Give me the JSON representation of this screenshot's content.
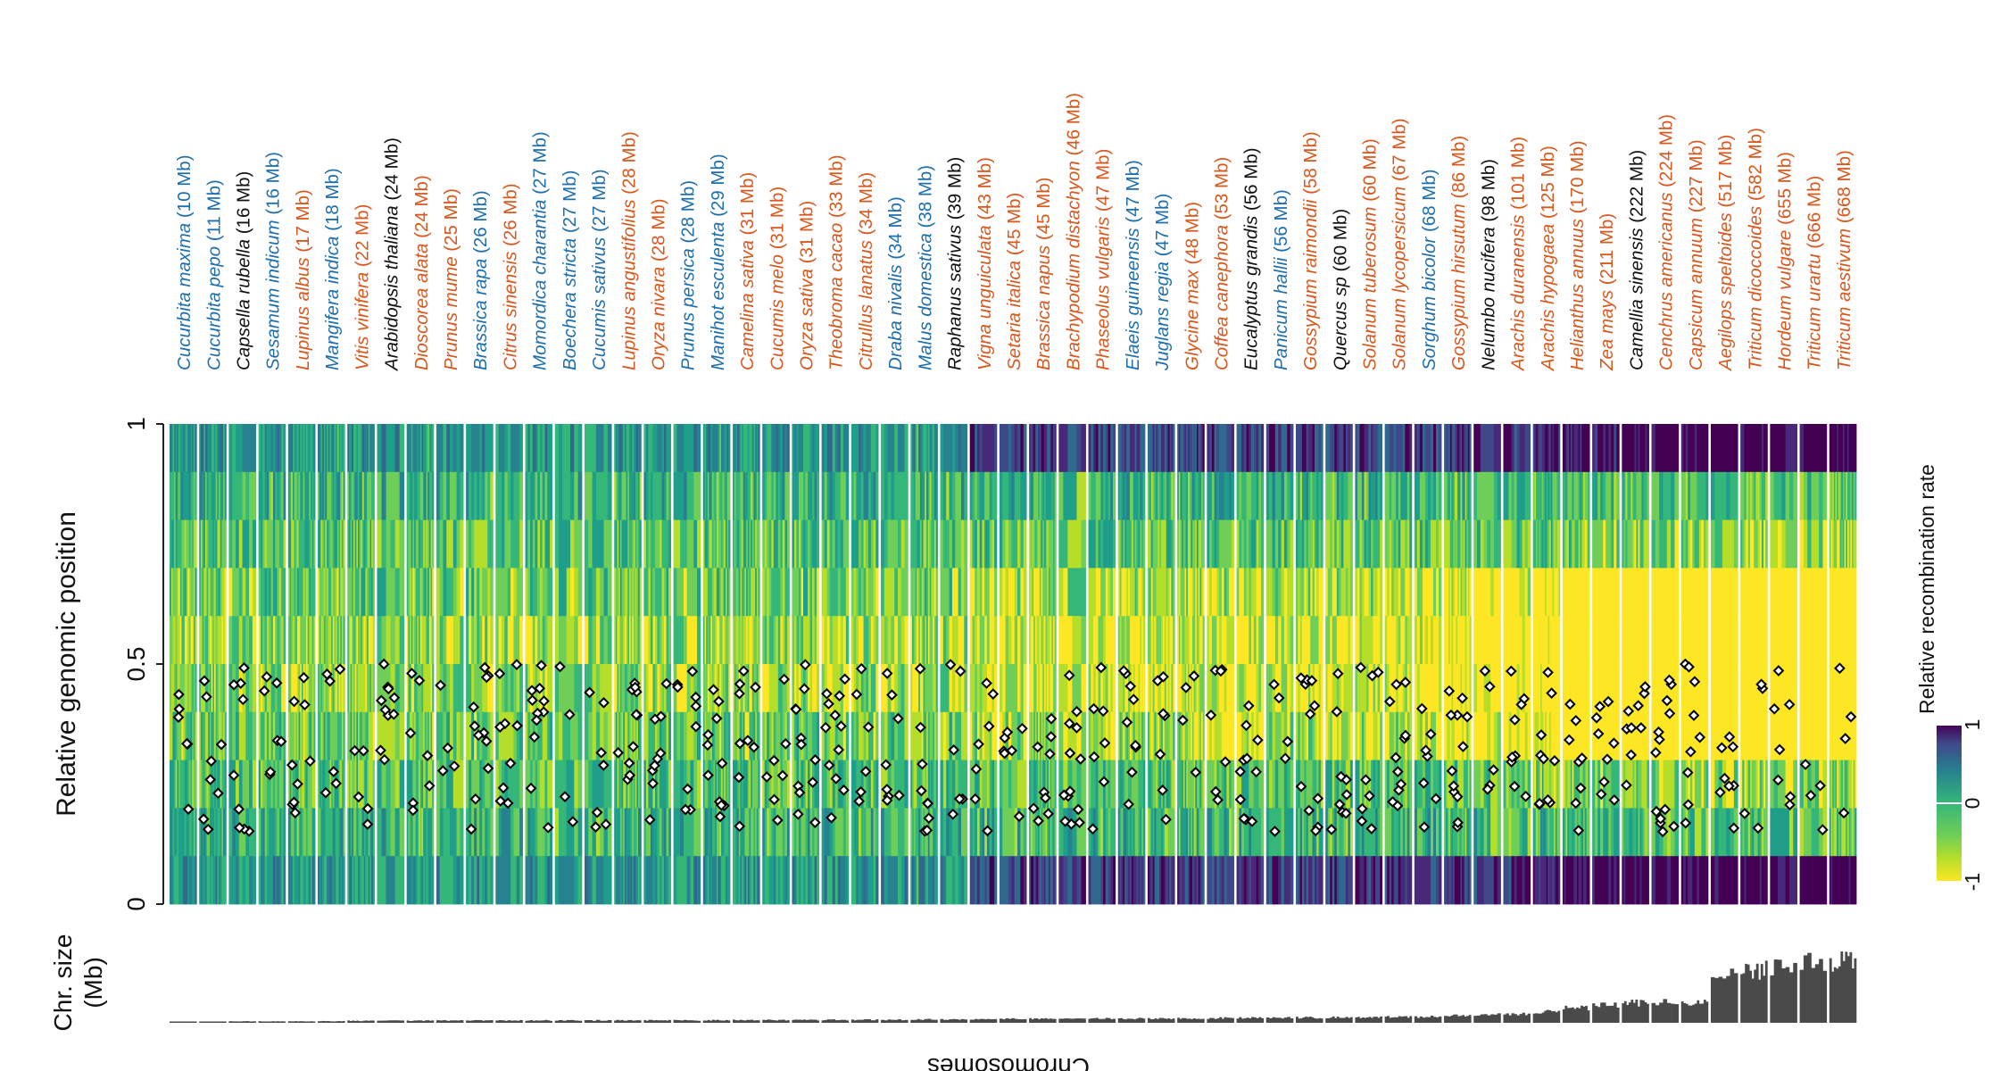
{
  "chart_data": {
    "type": "heatmap",
    "ylabel": "Relative genomic position",
    "xlabel": "Chromosomes",
    "lower_panel_ylabel": [
      "Chr. size",
      "(Mb)"
    ],
    "yticks": [
      "0",
      "0.5",
      "1"
    ],
    "ylim": [
      0,
      1
    ],
    "legend": {
      "title": "Relative recombination rate",
      "ticks": [
        "1",
        "0",
        "-1"
      ],
      "placement": "right"
    },
    "colors": {
      "orange": "#d9581e",
      "blue": "#1f6fae",
      "black": "#111111",
      "bars": "#4a4a4a",
      "viridis": [
        "#fde725",
        "#b5de2b",
        "#6ece58",
        "#35b779",
        "#1f9e89",
        "#26828e",
        "#31688e",
        "#3e4989",
        "#482878",
        "#440154"
      ]
    },
    "species": [
      {
        "genus": "Cucurbita",
        "epithet": "maxima",
        "size": "(10 Mb)",
        "color": "blue",
        "nchr": 20,
        "mb": 10
      },
      {
        "genus": "Cucurbita",
        "epithet": "pepo",
        "size": "(11 Mb)",
        "color": "blue",
        "nchr": 20,
        "mb": 11
      },
      {
        "genus": "Capsella",
        "epithet": "rubella",
        "size": "(16 Mb)",
        "color": "black",
        "nchr": 8,
        "mb": 16
      },
      {
        "genus": "Sesamum",
        "epithet": "indicum",
        "size": "(16 Mb)",
        "color": "blue",
        "nchr": 13,
        "mb": 16
      },
      {
        "genus": "Lupinus",
        "epithet": "albus",
        "size": "(17 Mb)",
        "color": "orange",
        "nchr": 25,
        "mb": 17
      },
      {
        "genus": "Mangifera",
        "epithet": "indica",
        "size": "(18 Mb)",
        "color": "blue",
        "nchr": 20,
        "mb": 18
      },
      {
        "genus": "Vitis",
        "epithet": "vinifera",
        "size": "(22 Mb)",
        "color": "orange",
        "nchr": 19,
        "mb": 22
      },
      {
        "genus": "Arabidopsis",
        "epithet": "thaliana",
        "size": "(24 Mb)",
        "color": "black",
        "nchr": 5,
        "mb": 24
      },
      {
        "genus": "Dioscorea",
        "epithet": "alata",
        "size": "(24 Mb)",
        "color": "orange",
        "nchr": 20,
        "mb": 24
      },
      {
        "genus": "Prunus",
        "epithet": "mume",
        "size": "(25 Mb)",
        "color": "orange",
        "nchr": 8,
        "mb": 25
      },
      {
        "genus": "Brassica",
        "epithet": "rapa",
        "size": "(26 Mb)",
        "color": "blue",
        "nchr": 10,
        "mb": 26
      },
      {
        "genus": "Citrus",
        "epithet": "sinensis",
        "size": "(26 Mb)",
        "color": "orange",
        "nchr": 9,
        "mb": 26
      },
      {
        "genus": "Momordica",
        "epithet": "charantia",
        "size": "(27 Mb)",
        "color": "blue",
        "nchr": 11,
        "mb": 27
      },
      {
        "genus": "Boechera",
        "epithet": "stricta",
        "size": "(27 Mb)",
        "color": "blue",
        "nchr": 7,
        "mb": 27
      },
      {
        "genus": "Cucumis",
        "epithet": "sativus",
        "size": "(27 Mb)",
        "color": "blue",
        "nchr": 7,
        "mb": 27
      },
      {
        "genus": "Lupinus",
        "epithet": "angustifolius",
        "size": "(28 Mb)",
        "color": "orange",
        "nchr": 20,
        "mb": 28
      },
      {
        "genus": "Oryza",
        "epithet": "nivara",
        "size": "(28 Mb)",
        "color": "orange",
        "nchr": 12,
        "mb": 28
      },
      {
        "genus": "Prunus",
        "epithet": "persica",
        "size": "(28 Mb)",
        "color": "blue",
        "nchr": 8,
        "mb": 28
      },
      {
        "genus": "Manihot",
        "epithet": "esculenta",
        "size": "(29 Mb)",
        "color": "blue",
        "nchr": 18,
        "mb": 29
      },
      {
        "genus": "Camelina",
        "epithet": "sativa",
        "size": "(31 Mb)",
        "color": "orange",
        "nchr": 20,
        "mb": 31
      },
      {
        "genus": "Cucumis",
        "epithet": "melo",
        "size": "(31 Mb)",
        "color": "orange",
        "nchr": 12,
        "mb": 31
      },
      {
        "genus": "Oryza",
        "epithet": "sativa",
        "size": "(31 Mb)",
        "color": "orange",
        "nchr": 12,
        "mb": 31
      },
      {
        "genus": "Theobroma",
        "epithet": "cacao",
        "size": "(33 Mb)",
        "color": "orange",
        "nchr": 10,
        "mb": 33
      },
      {
        "genus": "Citrullus",
        "epithet": "lanatus",
        "size": "(34 Mb)",
        "color": "orange",
        "nchr": 11,
        "mb": 34
      },
      {
        "genus": "Draba",
        "epithet": "nivalis",
        "size": "(34 Mb)",
        "color": "blue",
        "nchr": 8,
        "mb": 34
      },
      {
        "genus": "Malus",
        "epithet": "domestica",
        "size": "(38 Mb)",
        "color": "blue",
        "nchr": 17,
        "mb": 38
      },
      {
        "genus": "Raphanus",
        "epithet": "sativus",
        "size": "(39 Mb)",
        "color": "black",
        "nchr": 9,
        "mb": 39
      },
      {
        "genus": "Vigna",
        "epithet": "unguiculata",
        "size": "(43 Mb)",
        "color": "orange",
        "nchr": 11,
        "mb": 43
      },
      {
        "genus": "Setaria",
        "epithet": "italica",
        "size": "(45 Mb)",
        "color": "orange",
        "nchr": 9,
        "mb": 45
      },
      {
        "genus": "Brassica",
        "epithet": "napus",
        "size": "(45 Mb)",
        "color": "orange",
        "nchr": 19,
        "mb": 45
      },
      {
        "genus": "Brachypodium",
        "epithet": "distachyon",
        "size": "(46 Mb)",
        "color": "orange",
        "nchr": 5,
        "mb": 46
      },
      {
        "genus": "Phaseolus",
        "epithet": "vulgaris",
        "size": "(47 Mb)",
        "color": "orange",
        "nchr": 11,
        "mb": 47
      },
      {
        "genus": "Elaeis",
        "epithet": "guineensis",
        "size": "(47 Mb)",
        "color": "blue",
        "nchr": 16,
        "mb": 47
      },
      {
        "genus": "Juglans",
        "epithet": "regia",
        "size": "(47 Mb)",
        "color": "blue",
        "nchr": 16,
        "mb": 47
      },
      {
        "genus": "Glycine",
        "epithet": "max",
        "size": "(48 Mb)",
        "color": "orange",
        "nchr": 20,
        "mb": 48
      },
      {
        "genus": "Coffea",
        "epithet": "canephora",
        "size": "(53 Mb)",
        "color": "orange",
        "nchr": 11,
        "mb": 53
      },
      {
        "genus": "Eucalyptus",
        "epithet": "grandis",
        "size": "(56 Mb)",
        "color": "black",
        "nchr": 11,
        "mb": 56
      },
      {
        "genus": "Panicum",
        "epithet": "hallii",
        "size": "(56 Mb)",
        "color": "blue",
        "nchr": 9,
        "mb": 56
      },
      {
        "genus": "Gossypium",
        "epithet": "raimondii",
        "size": "(58 Mb)",
        "color": "orange",
        "nchr": 13,
        "mb": 58
      },
      {
        "genus": "Quercus",
        "epithet": "sp",
        "size": "(60 Mb)",
        "color": "black",
        "nchr": 12,
        "mb": 60
      },
      {
        "genus": "Solanum",
        "epithet": "tuberosum",
        "size": "(60 Mb)",
        "color": "orange",
        "nchr": 12,
        "mb": 60
      },
      {
        "genus": "Solanum",
        "epithet": "lycopersicum",
        "size": "(67 Mb)",
        "color": "orange",
        "nchr": 12,
        "mb": 67
      },
      {
        "genus": "Sorghum",
        "epithet": "bicolor",
        "size": "(68 Mb)",
        "color": "blue",
        "nchr": 10,
        "mb": 68
      },
      {
        "genus": "Gossypium",
        "epithet": "hirsutum",
        "size": "(86 Mb)",
        "color": "orange",
        "nchr": 26,
        "mb": 86
      },
      {
        "genus": "Nelumbo",
        "epithet": "nucifera",
        "size": "(98 Mb)",
        "color": "black",
        "nchr": 8,
        "mb": 98
      },
      {
        "genus": "Arachis",
        "epithet": "duranensis",
        "size": "(101 Mb)",
        "color": "orange",
        "nchr": 10,
        "mb": 101
      },
      {
        "genus": "Arachis",
        "epithet": "hypogaea",
        "size": "(125 Mb)",
        "color": "orange",
        "nchr": 20,
        "mb": 125
      },
      {
        "genus": "Helianthus",
        "epithet": "annuus",
        "size": "(170 Mb)",
        "color": "orange",
        "nchr": 17,
        "mb": 170
      },
      {
        "genus": "Zea",
        "epithet": "mays",
        "size": "(211 Mb)",
        "color": "orange",
        "nchr": 10,
        "mb": 211
      },
      {
        "genus": "Camellia",
        "epithet": "sinensis",
        "size": "(222 Mb)",
        "color": "black",
        "nchr": 15,
        "mb": 222
      },
      {
        "genus": "Cenchrus",
        "epithet": "americanus",
        "size": "(224 Mb)",
        "color": "orange",
        "nchr": 7,
        "mb": 224
      },
      {
        "genus": "Capsicum",
        "epithet": "annuum",
        "size": "(227 Mb)",
        "color": "orange",
        "nchr": 12,
        "mb": 227
      },
      {
        "genus": "Aegilops",
        "epithet": "speltoides",
        "size": "(517 Mb)",
        "color": "orange",
        "nchr": 7,
        "mb": 517
      },
      {
        "genus": "Triticum",
        "epithet": "dicoccoides",
        "size": "(582 Mb)",
        "color": "orange",
        "nchr": 14,
        "mb": 582
      },
      {
        "genus": "Hordeum",
        "epithet": "vulgare",
        "size": "(655 Mb)",
        "color": "orange",
        "nchr": 7,
        "mb": 655
      },
      {
        "genus": "Triticum",
        "epithet": "urartu",
        "size": "(666 Mb)",
        "color": "orange",
        "nchr": 7,
        "mb": 666
      },
      {
        "genus": "Triticum",
        "epithet": "aestivum",
        "size": "(668 Mb)",
        "color": "orange",
        "nchr": 21,
        "mb": 668
      }
    ]
  }
}
